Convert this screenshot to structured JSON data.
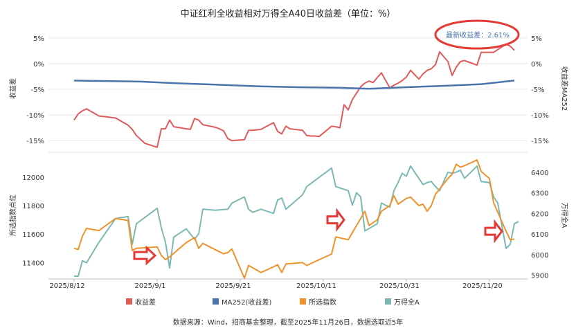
{
  "title": "中证红利全收益相对万得全A40日收益差（单位：%）",
  "source": "数据来源：Wind，招商基金整理，截至2025年11月26日，数据选取近5年",
  "annotation": "最新收益差：2.61%",
  "legend": [
    {
      "key": "spread",
      "label": "收益差",
      "color": "#e05a5a"
    },
    {
      "key": "ma252",
      "label": "MA252(收益差)",
      "color": "#4a74ad"
    },
    {
      "key": "index",
      "label": "所选指数",
      "color": "#f0922b"
    },
    {
      "key": "wind",
      "label": "万得全A",
      "color": "#7cb8b3"
    }
  ],
  "colors": {
    "spread": "#e05a5a",
    "ma252": "#4a74ad",
    "index": "#f0922b",
    "wind": "#7cb8b3",
    "grid": "#e6e6e6",
    "arrow": "#e53935",
    "annotation": "#e53935"
  },
  "chart_data": [
    {
      "type": "line",
      "panel": "top",
      "ylabel_left": "收益差",
      "ylabel_right": "收益差MA252",
      "ylim": [
        -17,
        7
      ],
      "yticks": [
        5,
        0,
        -5,
        -10,
        -15
      ],
      "ytick_labels": [
        "5%",
        "0%",
        "-5%",
        "-10%",
        "-15%"
      ],
      "series": [
        {
          "name": "收益差",
          "key": "spread",
          "points": [
            [
              "2025-08-12",
              -11.0
            ],
            [
              "2025-08-13",
              -9.8
            ],
            [
              "2025-08-14",
              -9.2
            ],
            [
              "2025-08-15",
              -8.8
            ],
            [
              "2025-08-18",
              -10.2
            ],
            [
              "2025-08-19",
              -10.3
            ],
            [
              "2025-08-22",
              -10.6
            ],
            [
              "2025-08-25",
              -12.0
            ],
            [
              "2025-08-26",
              -12.8
            ],
            [
              "2025-08-27",
              -14.0
            ],
            [
              "2025-08-29",
              -15.5
            ],
            [
              "2025-09-01",
              -16.3
            ],
            [
              "2025-09-02",
              -12.7
            ],
            [
              "2025-09-03",
              -12.7
            ],
            [
              "2025-09-04",
              -11.0
            ],
            [
              "2025-09-05",
              -12.3
            ],
            [
              "2025-09-08",
              -12.7
            ],
            [
              "2025-09-09",
              -12.8
            ],
            [
              "2025-09-10",
              -10.7
            ],
            [
              "2025-09-11",
              -11.0
            ],
            [
              "2025-09-12",
              -11.9
            ],
            [
              "2025-09-15",
              -12.4
            ],
            [
              "2025-09-16",
              -12.7
            ],
            [
              "2025-09-17",
              -13.1
            ],
            [
              "2025-09-18",
              -14.6
            ],
            [
              "2025-09-19",
              -15.0
            ],
            [
              "2025-09-22",
              -14.8
            ],
            [
              "2025-09-23",
              -13.0
            ],
            [
              "2025-09-24",
              -13.0
            ],
            [
              "2025-09-26",
              -12.8
            ],
            [
              "2025-09-29",
              -11.5
            ],
            [
              "2025-09-30",
              -13.2
            ],
            [
              "2025-10-01",
              -13.7
            ],
            [
              "2025-10-02",
              -12.2
            ],
            [
              "2025-10-03",
              -12.7
            ],
            [
              "2025-10-06",
              -13.0
            ],
            [
              "2025-10-07",
              -14.0
            ],
            [
              "2025-10-08",
              -14.1
            ],
            [
              "2025-10-09",
              -14.1
            ],
            [
              "2025-10-10",
              -14.2
            ],
            [
              "2025-10-13",
              -12.2
            ],
            [
              "2025-10-14",
              -12.3
            ],
            [
              "2025-10-15",
              -12.5
            ],
            [
              "2025-10-16",
              -8.0
            ],
            [
              "2025-10-17",
              -9.0
            ],
            [
              "2025-10-18",
              -7.0
            ],
            [
              "2025-10-20",
              -4.5
            ],
            [
              "2025-10-21",
              -3.8
            ],
            [
              "2025-10-22",
              -3.4
            ],
            [
              "2025-10-23",
              -3.7
            ],
            [
              "2025-10-24",
              -2.7
            ],
            [
              "2025-10-25",
              -1.8
            ],
            [
              "2025-10-27",
              -4.7
            ],
            [
              "2025-10-28",
              -4.2
            ],
            [
              "2025-10-29",
              -3.8
            ],
            [
              "2025-10-30",
              -3.3
            ],
            [
              "2025-10-31",
              -2.6
            ],
            [
              "2025-11-01",
              -1.3
            ],
            [
              "2025-11-03",
              -3.0
            ],
            [
              "2025-11-04",
              -2.0
            ],
            [
              "2025-11-05",
              -1.3
            ],
            [
              "2025-11-06",
              -1.0
            ],
            [
              "2025-11-07",
              -0.2
            ],
            [
              "2025-11-08",
              2.3
            ],
            [
              "2025-11-10",
              0.4
            ],
            [
              "2025-11-11",
              -2.3
            ],
            [
              "2025-11-12",
              -0.7
            ],
            [
              "2025-11-13",
              0.4
            ],
            [
              "2025-11-14",
              0.6
            ],
            [
              "2025-11-17",
              -0.3
            ],
            [
              "2025-11-18",
              2.2
            ],
            [
              "2025-11-19",
              2.2
            ],
            [
              "2025-11-20",
              2.2
            ],
            [
              "2025-11-21",
              2.2
            ],
            [
              "2025-11-24",
              3.8
            ],
            [
              "2025-11-25",
              3.4
            ],
            [
              "2025-11-26",
              2.6
            ]
          ]
        },
        {
          "name": "MA252(收益差)",
          "key": "ma252",
          "points": [
            [
              "2025-08-12",
              -3.3
            ],
            [
              "2025-08-20",
              -3.4
            ],
            [
              "2025-08-28",
              -3.5
            ],
            [
              "2025-09-05",
              -3.8
            ],
            [
              "2025-09-15",
              -4.1
            ],
            [
              "2025-09-25",
              -4.4
            ],
            [
              "2025-10-05",
              -4.6
            ],
            [
              "2025-10-15",
              -4.7
            ],
            [
              "2025-10-22",
              -4.9
            ],
            [
              "2025-10-31",
              -4.6
            ],
            [
              "2025-11-10",
              -4.3
            ],
            [
              "2025-11-18",
              -4.0
            ],
            [
              "2025-11-26",
              -3.3
            ]
          ]
        }
      ]
    },
    {
      "type": "line",
      "panel": "bottom",
      "ylabel_left": "所选指数点位",
      "ylabel_right": "万得全A",
      "ylim_left": [
        11290,
        12150
      ],
      "yticks_left": [
        12000,
        11800,
        11600,
        11400
      ],
      "ylim_right": [
        5885,
        6480
      ],
      "yticks_right": [
        6400,
        6300,
        6200,
        6100,
        6000,
        5900
      ],
      "x_ticks": [
        "2025/8/12",
        "2025/9/1",
        "2025/9/21",
        "2025/10/11",
        "2025/10/31",
        "2025/11/20"
      ],
      "series": [
        {
          "name": "所选指数",
          "key": "index",
          "axis": "left",
          "points": [
            [
              "2025-08-12",
              11500
            ],
            [
              "2025-08-13",
              11492
            ],
            [
              "2025-08-14",
              11585
            ],
            [
              "2025-08-15",
              11640
            ],
            [
              "2025-08-18",
              11625
            ],
            [
              "2025-08-22",
              11710
            ],
            [
              "2025-08-25",
              11695
            ],
            [
              "2025-08-26",
              11485
            ],
            [
              "2025-08-27",
              11500
            ],
            [
              "2025-09-01",
              11510
            ],
            [
              "2025-09-02",
              11450
            ],
            [
              "2025-09-03",
              11420
            ],
            [
              "2025-09-04",
              11440
            ],
            [
              "2025-09-08",
              11540
            ],
            [
              "2025-09-10",
              11575
            ],
            [
              "2025-09-11",
              11500
            ],
            [
              "2025-09-12",
              11535
            ],
            [
              "2025-09-15",
              11490
            ],
            [
              "2025-09-17",
              11462
            ],
            [
              "2025-09-18",
              11470
            ],
            [
              "2025-09-19",
              11495
            ],
            [
              "2025-09-22",
              11290
            ],
            [
              "2025-09-23",
              11380
            ],
            [
              "2025-09-26",
              11330
            ],
            [
              "2025-09-29",
              11370
            ],
            [
              "2025-09-30",
              11385
            ],
            [
              "2025-10-01",
              11330
            ],
            [
              "2025-10-02",
              11390
            ],
            [
              "2025-10-06",
              11400
            ],
            [
              "2025-10-07",
              11380
            ],
            [
              "2025-10-13",
              11460
            ],
            [
              "2025-10-14",
              11580
            ],
            [
              "2025-10-17",
              11560
            ],
            [
              "2025-10-20",
              11710
            ],
            [
              "2025-10-21",
              11760
            ],
            [
              "2025-10-22",
              11660
            ],
            [
              "2025-10-24",
              11700
            ],
            [
              "2025-10-25",
              11760
            ],
            [
              "2025-10-27",
              11800
            ],
            [
              "2025-10-28",
              11870
            ],
            [
              "2025-10-29",
              11810
            ],
            [
              "2025-10-31",
              11850
            ],
            [
              "2025-11-01",
              11860
            ],
            [
              "2025-11-03",
              11800
            ],
            [
              "2025-11-04",
              11810
            ],
            [
              "2025-11-05",
              11760
            ],
            [
              "2025-11-06",
              11800
            ],
            [
              "2025-11-07",
              11880
            ],
            [
              "2025-11-10",
              11990
            ],
            [
              "2025-11-11",
              12020
            ],
            [
              "2025-11-12",
              12090
            ],
            [
              "2025-11-13",
              12070
            ],
            [
              "2025-11-14",
              12080
            ],
            [
              "2025-11-17",
              12120
            ],
            [
              "2025-11-18",
              12040
            ],
            [
              "2025-11-20",
              11990
            ],
            [
              "2025-11-21",
              11820
            ],
            [
              "2025-11-24",
              11620
            ],
            [
              "2025-11-25",
              11560
            ],
            [
              "2025-11-26",
              11565
            ]
          ]
        },
        {
          "name": "万得全A",
          "key": "wind",
          "axis": "right",
          "points": [
            [
              "2025-08-12",
              5895
            ],
            [
              "2025-08-13",
              5895
            ],
            [
              "2025-08-14",
              5970
            ],
            [
              "2025-08-15",
              5960
            ],
            [
              "2025-08-18",
              6060
            ],
            [
              "2025-08-22",
              6175
            ],
            [
              "2025-08-25",
              6185
            ],
            [
              "2025-08-26",
              6050
            ],
            [
              "2025-08-27",
              6150
            ],
            [
              "2025-09-01",
              6225
            ],
            [
              "2025-09-02",
              6130
            ],
            [
              "2025-09-03",
              6060
            ],
            [
              "2025-09-04",
              5935
            ],
            [
              "2025-09-05",
              6085
            ],
            [
              "2025-09-08",
              6125
            ],
            [
              "2025-09-10",
              6075
            ],
            [
              "2025-09-11",
              6100
            ],
            [
              "2025-09-12",
              6220
            ],
            [
              "2025-09-15",
              6215
            ],
            [
              "2025-09-18",
              6220
            ],
            [
              "2025-09-19",
              6250
            ],
            [
              "2025-09-22",
              6280
            ],
            [
              "2025-09-23",
              6220
            ],
            [
              "2025-09-24",
              6205
            ],
            [
              "2025-09-26",
              6220
            ],
            [
              "2025-09-29",
              6200
            ],
            [
              "2025-09-30",
              6265
            ],
            [
              "2025-10-01",
              6275
            ],
            [
              "2025-10-02",
              6220
            ],
            [
              "2025-10-06",
              6290
            ],
            [
              "2025-10-07",
              6330
            ],
            [
              "2025-10-13",
              6420
            ],
            [
              "2025-10-14",
              6330
            ],
            [
              "2025-10-17",
              6310
            ],
            [
              "2025-10-18",
              6240
            ],
            [
              "2025-10-19",
              6300
            ],
            [
              "2025-10-20",
              6280
            ],
            [
              "2025-10-21",
              6115
            ],
            [
              "2025-10-24",
              6150
            ],
            [
              "2025-10-25",
              6250
            ],
            [
              "2025-10-27",
              6230
            ],
            [
              "2025-10-28",
              6310
            ],
            [
              "2025-10-29",
              6350
            ],
            [
              "2025-10-30",
              6395
            ],
            [
              "2025-10-31",
              6380
            ],
            [
              "2025-11-01",
              6430
            ],
            [
              "2025-11-03",
              6370
            ],
            [
              "2025-11-04",
              6340
            ],
            [
              "2025-11-05",
              6350
            ],
            [
              "2025-11-06",
              6355
            ],
            [
              "2025-11-07",
              6330
            ],
            [
              "2025-11-08",
              6310
            ],
            [
              "2025-11-10",
              6400
            ],
            [
              "2025-11-11",
              6395
            ],
            [
              "2025-11-12",
              6400
            ],
            [
              "2025-11-13",
              6410
            ],
            [
              "2025-11-14",
              6370
            ],
            [
              "2025-11-17",
              6430
            ],
            [
              "2025-11-18",
              6355
            ],
            [
              "2025-11-20",
              6350
            ],
            [
              "2025-11-21",
              6280
            ],
            [
              "2025-11-22",
              6250
            ],
            [
              "2025-11-24",
              6030
            ],
            [
              "2025-11-25",
              6050
            ],
            [
              "2025-11-26",
              6150
            ],
            [
              "2025-11-27",
              6160
            ]
          ]
        }
      ],
      "markers": [
        {
          "type": "arrow-right",
          "x": "2025-09-01",
          "y_left": 11450
        },
        {
          "type": "arrow-down",
          "x": "2025-10-14",
          "y_left": 11700
        },
        {
          "type": "arrow-down",
          "x": "2025-11-21",
          "y_left": 11620
        }
      ]
    }
  ]
}
